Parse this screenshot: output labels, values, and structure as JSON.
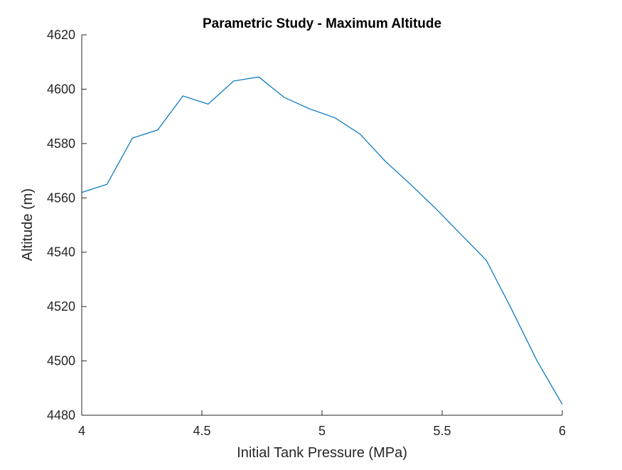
{
  "chart_data": {
    "type": "line",
    "title": "Parametric Study - Maximum Altitude",
    "xlabel": "Initial Tank Pressure (MPa)",
    "ylabel": "Altitude (m)",
    "xlim": [
      4,
      6
    ],
    "ylim": [
      4480,
      4620
    ],
    "xticks": [
      4,
      4.5,
      5,
      5.5,
      6
    ],
    "xtick_labels": [
      "4",
      "4.5",
      "5",
      "5.5",
      "6"
    ],
    "yticks": [
      4480,
      4500,
      4520,
      4540,
      4560,
      4580,
      4600,
      4620
    ],
    "ytick_labels": [
      "4480",
      "4500",
      "4520",
      "4540",
      "4560",
      "4580",
      "4600",
      "4620"
    ],
    "grid": false,
    "series_color": "#0072BD",
    "series": [
      {
        "x": [
          4.0,
          4.105,
          4.211,
          4.316,
          4.421,
          4.526,
          4.632,
          4.737,
          4.842,
          4.947,
          5.053,
          5.158,
          5.263,
          5.368,
          5.474,
          5.579,
          5.684,
          5.789,
          5.895,
          6.0
        ],
        "values": [
          4562,
          4565,
          4582,
          4585,
          4597.5,
          4594.5,
          4603,
          4604.5,
          4597,
          4592.8,
          4589.5,
          4583.5,
          4573.5,
          4565,
          4556,
          4546.5,
          4537,
          4519,
          4500,
          4484
        ]
      }
    ]
  }
}
